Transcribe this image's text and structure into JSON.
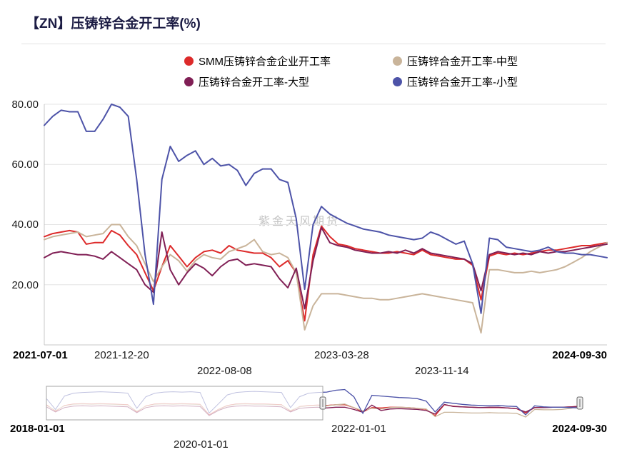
{
  "title": "【ZN】压铸锌合金开工率(%)",
  "watermark": "紫金天风期货",
  "colors": {
    "red": "#dd2a2a",
    "tan": "#c9b49a",
    "purple": "#801f55",
    "blue": "#4d53a8",
    "grid": "#e4e4e4",
    "axis": "#c8c8c8",
    "title_color": "#1c1c44"
  },
  "legend": [
    {
      "label": "SMM压铸锌合金企业开工率"
    },
    {
      "label": "压铸锌合金开工率-中型"
    },
    {
      "label": "压铸锌合金开工率-大型"
    },
    {
      "label": "压铸锌合金开工率-小型"
    }
  ],
  "chart_data": {
    "type": "line",
    "title": "【ZN】压铸锌合金开工率(%)",
    "ylabel": "",
    "xlabel": "",
    "grid": true,
    "legend_position": "top",
    "main": {
      "x_range": [
        "2021-07-01",
        "2024-09-30"
      ],
      "ylim": [
        0,
        80
      ],
      "yticks": [
        "80.00",
        "60.00",
        "40.00",
        "20.00"
      ],
      "xticks": [
        "2021-07-01",
        "2021-12-20",
        "2022-08-08",
        "2023-03-28",
        "2023-11-14",
        "2024-09-30"
      ],
      "series": [
        {
          "key": "smm",
          "name": "SMM压铸锌合金企业开工率",
          "color": "#dd2a2a",
          "values": [
            36,
            37,
            37.5,
            38,
            37.5,
            33.5,
            34,
            34,
            38,
            36.5,
            33,
            30,
            24,
            18,
            26,
            33,
            29.5,
            26,
            29,
            31,
            31.5,
            30.5,
            33,
            31.5,
            31,
            30.5,
            30.5,
            29,
            26,
            28,
            24,
            8,
            30,
            39.5,
            36,
            33.5,
            33,
            32,
            31.5,
            31,
            30.5,
            30.5,
            31,
            30.5,
            30,
            31.5,
            30,
            29.5,
            29,
            28.5,
            28.5,
            26.5,
            15,
            29.5,
            30.5,
            30,
            30.5,
            30,
            30.5,
            31,
            31.5,
            31.5,
            32,
            32.5,
            33,
            33,
            33.5,
            34
          ]
        },
        {
          "key": "medium",
          "name": "压铸锌合金开工率-中型",
          "color": "#c9b49a",
          "values": [
            35,
            36,
            36.5,
            37,
            37.5,
            36,
            36.5,
            37,
            40,
            40,
            36,
            33,
            27,
            21,
            26,
            30,
            28,
            24.5,
            28,
            30,
            29,
            28.5,
            31,
            32,
            33,
            35,
            31,
            30,
            30.5,
            29,
            24,
            5,
            13,
            17,
            17,
            17,
            16.5,
            16,
            15.5,
            15.5,
            15,
            15,
            15.5,
            16,
            16.5,
            17,
            16.5,
            16,
            15.5,
            15,
            14.5,
            14,
            4,
            25,
            25,
            24.5,
            24,
            24,
            24.5,
            24,
            24.5,
            25,
            26,
            27.5,
            29,
            31,
            32.5,
            34
          ]
        },
        {
          "key": "large",
          "name": "压铸锌合金开工率-大型",
          "color": "#801f55",
          "values": [
            29,
            30.5,
            31,
            30.5,
            30,
            30,
            29.5,
            28.5,
            31,
            29,
            27,
            25,
            20,
            17.5,
            37.5,
            25,
            20,
            24,
            27,
            25.5,
            23,
            26,
            28,
            28.5,
            26.5,
            27,
            26.5,
            26,
            22,
            19,
            25.5,
            12,
            28,
            39,
            34,
            33,
            32.5,
            31.5,
            31,
            30.5,
            30.5,
            31,
            30.5,
            31.5,
            30.5,
            32,
            30.5,
            30,
            29.5,
            29,
            28.5,
            27,
            18,
            30,
            31,
            30.5,
            30,
            30.5,
            30,
            31,
            30.5,
            31,
            31,
            31.5,
            32,
            32.5,
            33,
            33.5
          ]
        },
        {
          "key": "small",
          "name": "压铸锌合金开工率-小型",
          "color": "#4d53a8",
          "values": [
            73,
            76,
            78,
            77.5,
            77.5,
            71,
            71,
            75,
            80,
            79,
            76,
            55,
            30,
            13.5,
            55,
            66,
            61,
            63,
            64.5,
            60,
            62,
            59.5,
            60,
            58,
            53,
            57,
            58.5,
            58.5,
            55,
            54,
            42,
            18.5,
            40,
            46,
            43.5,
            42,
            40.5,
            39.5,
            38.5,
            38,
            37.5,
            36.5,
            36,
            35.5,
            35,
            35.5,
            37.5,
            36.5,
            35,
            33.5,
            34.5,
            27,
            10.5,
            35.5,
            35,
            32.5,
            32,
            31.5,
            31,
            31.5,
            32.5,
            31,
            30.5,
            30.5,
            30,
            30,
            29.5,
            29
          ]
        }
      ]
    },
    "navigator": {
      "x_range": [
        "2018-01-01",
        "2024-09-30"
      ],
      "xticks": [
        "2018-01-01",
        "2020-01-01",
        "2022-01-01",
        "2024-09-30"
      ],
      "selected_from": "2021-07-01",
      "selected_to": "2024-09-30",
      "series": [
        {
          "key": "smm",
          "name": "SMM压铸锌合金企业开工率",
          "color": "#dd2a2a",
          "values": [
            38,
            20,
            36,
            40,
            41,
            40,
            41,
            40,
            39,
            38,
            18,
            35,
            40,
            41,
            40,
            41,
            40,
            39,
            10,
            25,
            36,
            40,
            41,
            40,
            40,
            39,
            38,
            20,
            33,
            36,
            37,
            36,
            38,
            38,
            30,
            18,
            30,
            29,
            31,
            31,
            30,
            28,
            25,
            8,
            38,
            34,
            32,
            31,
            30,
            30,
            30,
            29,
            27,
            15,
            30,
            30,
            31,
            31,
            32,
            34
          ]
        },
        {
          "key": "medium",
          "name": "压铸锌合金开工率-中型",
          "color": "#c9b49a",
          "values": [
            36,
            22,
            35,
            39,
            40,
            39,
            40,
            39,
            38,
            37,
            20,
            34,
            39,
            40,
            39,
            40,
            39,
            38,
            8,
            24,
            35,
            39,
            40,
            39,
            39,
            38,
            37,
            22,
            32,
            35,
            36,
            35,
            38,
            40,
            30,
            21,
            28,
            26,
            30,
            31,
            30,
            28,
            26,
            5,
            17,
            17,
            16,
            15,
            15,
            16,
            15,
            15,
            14,
            4,
            25,
            24,
            24,
            25,
            28,
            34
          ]
        },
        {
          "key": "large",
          "name": "压铸锌合金开工率-大型",
          "color": "#801f55",
          "values": [
            32,
            18,
            30,
            34,
            35,
            34,
            35,
            34,
            33,
            32,
            16,
            30,
            34,
            35,
            34,
            35,
            34,
            33,
            8,
            22,
            31,
            34,
            35,
            34,
            34,
            33,
            32,
            18,
            28,
            30,
            31,
            29,
            31,
            31,
            25,
            17,
            37,
            22,
            26,
            27,
            26,
            25,
            22,
            12,
            39,
            33,
            32,
            31,
            30,
            31,
            31,
            29,
            27,
            18,
            30,
            30,
            31,
            31,
            32,
            33
          ]
        },
        {
          "key": "small",
          "name": "压铸锌合金开工率-小型",
          "color": "#4d53a8",
          "values": [
            55,
            25,
            62,
            70,
            72,
            73,
            74,
            73,
            72,
            70,
            28,
            60,
            70,
            73,
            74,
            73,
            74,
            72,
            15,
            40,
            65,
            72,
            74,
            75,
            74,
            73,
            72,
            30,
            60,
            70,
            72,
            73,
            78,
            80,
            60,
            14,
            64,
            62,
            60,
            58,
            57,
            55,
            48,
            18,
            45,
            42,
            39,
            37,
            36,
            35,
            36,
            34,
            33,
            10,
            35,
            32,
            31,
            31,
            30,
            29
          ]
        }
      ]
    }
  }
}
